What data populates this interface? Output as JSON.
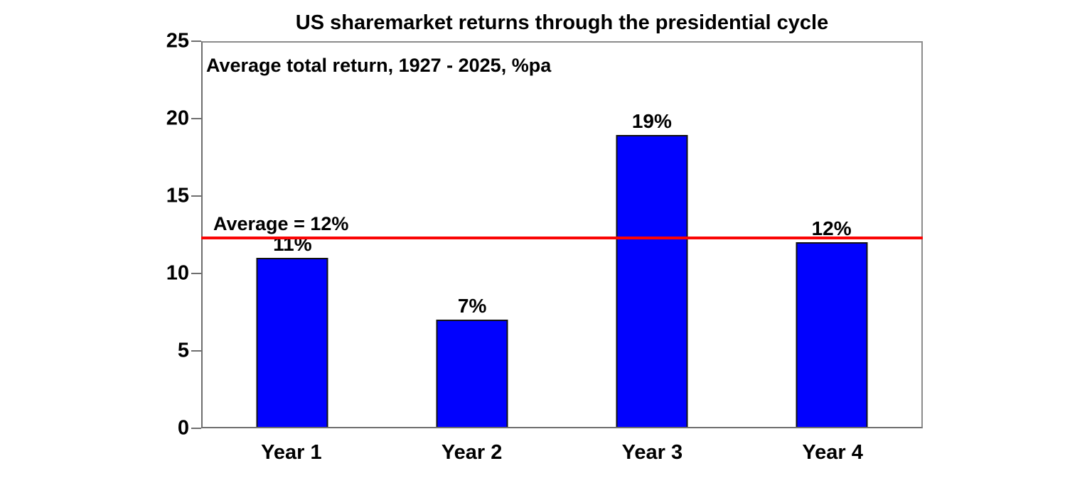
{
  "chart_data": {
    "type": "bar",
    "title": "US sharemarket returns through the presidential cycle",
    "subtitle": "Average total return, 1927 - 2025, %pa",
    "categories": [
      "Year 1",
      "Year 2",
      "Year 3",
      "Year 4"
    ],
    "values": [
      11,
      7,
      19,
      12
    ],
    "value_labels": [
      "11%",
      "7%",
      "19%",
      "12%"
    ],
    "average_line": {
      "value": 12.3,
      "label": "Average = 12%"
    },
    "xlabel": "",
    "ylabel": "",
    "ylim": [
      0,
      25
    ],
    "yticks": [
      0,
      5,
      10,
      15,
      20,
      25
    ],
    "grid": false,
    "legend": false,
    "colors": {
      "bar_fill": "#0101FE",
      "bar_border": "#111111",
      "average_line": "#FA0505",
      "text": "#000000",
      "plot_background": "#FFFFFF"
    }
  }
}
